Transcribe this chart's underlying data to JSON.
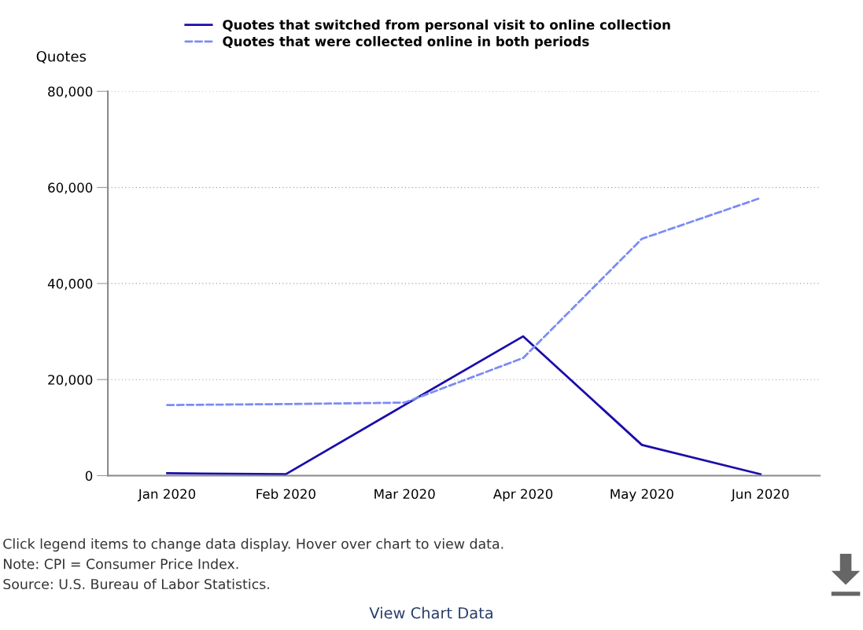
{
  "chart_data": {
    "type": "line",
    "ylabel": "Quotes",
    "categories": [
      "Jan 2020",
      "Feb 2020",
      "Mar 2020",
      "Apr 2020",
      "May 2020",
      "Jun 2020"
    ],
    "series": [
      {
        "name": "Quotes that switched from personal visit to online collection",
        "color": "#1a0dab",
        "line_style": "solid",
        "values": [
          500,
          300,
          14700,
          29000,
          6400,
          300
        ]
      },
      {
        "name": "Quotes that were collected online in both periods",
        "color": "#7b8cf5",
        "line_style": "dashed",
        "values": [
          14700,
          14900,
          15200,
          24500,
          49300,
          57800
        ]
      }
    ],
    "ylim": [
      0,
      80000
    ],
    "yticks": [
      {
        "value": 0,
        "label": "0"
      },
      {
        "value": 20000,
        "label": "20,000"
      },
      {
        "value": 40000,
        "label": "40,000"
      },
      {
        "value": 60000,
        "label": "60,000"
      },
      {
        "value": 80000,
        "label": "80,000"
      }
    ],
    "grid": "y",
    "legend": "top",
    "marker": "none",
    "annotations": [
      "Click legend items to change data display. Hover over chart to view data.",
      "Note: CPI = Consumer Price Index.",
      "Source: U.S. Bureau of Labor Statistics.",
      "View Chart Data"
    ]
  }
}
